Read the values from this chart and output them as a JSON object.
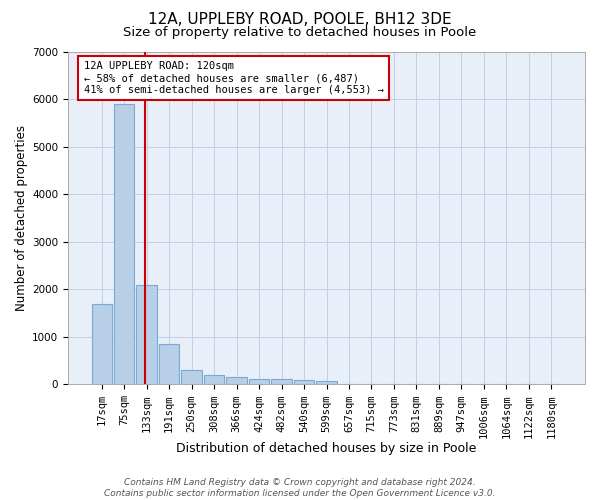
{
  "title1": "12A, UPPLEBY ROAD, POOLE, BH12 3DE",
  "title2": "Size of property relative to detached houses in Poole",
  "xlabel": "Distribution of detached houses by size in Poole",
  "ylabel": "Number of detached properties",
  "bar_color": "#b8cfe8",
  "bar_edge_color": "#7aaad0",
  "grid_color": "#c0d0e4",
  "background_color": "#e8eff8",
  "red_line_color": "#cc0000",
  "categories": [
    "17sqm",
    "75sqm",
    "133sqm",
    "191sqm",
    "250sqm",
    "308sqm",
    "366sqm",
    "424sqm",
    "482sqm",
    "540sqm",
    "599sqm",
    "657sqm",
    "715sqm",
    "773sqm",
    "831sqm",
    "889sqm",
    "947sqm",
    "1006sqm",
    "1064sqm",
    "1122sqm",
    "1180sqm"
  ],
  "values": [
    1700,
    5900,
    2080,
    840,
    310,
    195,
    160,
    120,
    105,
    100,
    80,
    0,
    0,
    0,
    0,
    0,
    0,
    0,
    0,
    0,
    0
  ],
  "ylim": [
    0,
    7000
  ],
  "yticks": [
    0,
    1000,
    2000,
    3000,
    4000,
    5000,
    6000,
    7000
  ],
  "red_line_x": 1.93,
  "annotation_line1": "12A UPPLEBY ROAD: 120sqm",
  "annotation_line2": "← 58% of detached houses are smaller (6,487)",
  "annotation_line3": "41% of semi-detached houses are larger (4,553) →",
  "footer_text": "Contains HM Land Registry data © Crown copyright and database right 2024.\nContains public sector information licensed under the Open Government Licence v3.0.",
  "title1_fontsize": 11,
  "title2_fontsize": 9.5,
  "xlabel_fontsize": 9,
  "ylabel_fontsize": 8.5,
  "tick_fontsize": 7.5,
  "annotation_fontsize": 7.5,
  "footer_fontsize": 6.5
}
